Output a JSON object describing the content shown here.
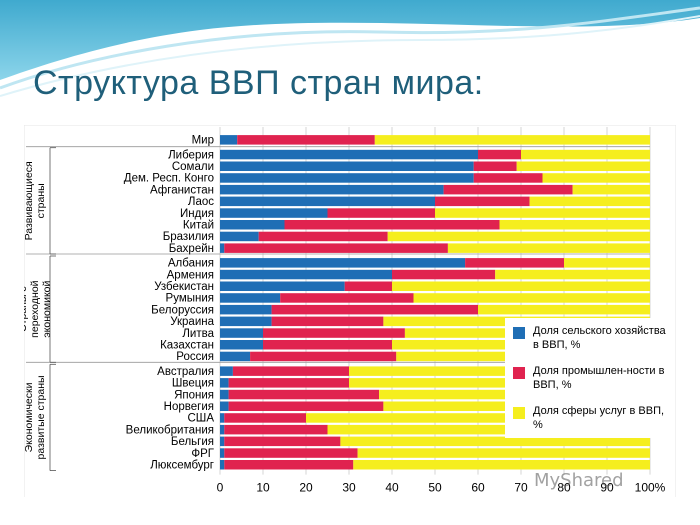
{
  "slide": {
    "title": "Структура ВВП стран мира:",
    "watermark": "MyShared"
  },
  "colors": {
    "agriculture": "#1f6eb5",
    "industry": "#e0234f",
    "services": "#f5ee1e",
    "title": "#1f5f7a"
  },
  "chart_data": {
    "type": "bar",
    "orientation": "horizontal-stacked",
    "categories": [
      "Мир",
      "Либерия",
      "Сомали",
      "Дем. Респ. Конго",
      "Афганистан",
      "Лаос",
      "Индия",
      "Китай",
      "Бразилия",
      "Бахрейн",
      "Албания",
      "Армения",
      "Узбекистан",
      "Румыния",
      "Белоруссия",
      "Украина",
      "Литва",
      "Казахстан",
      "Россия",
      "Австралия",
      "Швеция",
      "Япония",
      "Норвегия",
      "США",
      "Великобритания",
      "Бельгия",
      "ФРГ",
      "Люксембург"
    ],
    "series": [
      {
        "name": "Доля сельского хозяйства в ВВП, %",
        "values": [
          4,
          60,
          59,
          59,
          52,
          50,
          25,
          15,
          9,
          1,
          57,
          40,
          29,
          14,
          12,
          12,
          10,
          10,
          7,
          3,
          2,
          2,
          2,
          1,
          1,
          1,
          1,
          1
        ]
      },
      {
        "name": "Доля промышлен-ности в ВВП, %",
        "values": [
          32,
          10,
          10,
          16,
          30,
          22,
          25,
          50,
          30,
          52,
          23,
          24,
          11,
          31,
          48,
          26,
          33,
          30,
          34,
          27,
          28,
          35,
          36,
          19,
          24,
          27,
          31,
          30
        ]
      },
      {
        "name": "Доля сферы услуг в ВВП, %",
        "values": [
          64,
          30,
          31,
          25,
          18,
          28,
          50,
          35,
          61,
          47,
          20,
          36,
          60,
          55,
          40,
          62,
          57,
          60,
          59,
          70,
          70,
          63,
          62,
          80,
          75,
          72,
          68,
          69
        ]
      }
    ],
    "groups": [
      {
        "label": "Развивающиеся страны",
        "from": 1,
        "to": 9
      },
      {
        "label": "Страны с переходной экономикой",
        "from": 10,
        "to": 18
      },
      {
        "label": "Экономически развитые страны",
        "from": 19,
        "to": 27
      }
    ],
    "xticks": [
      "0",
      "10",
      "20",
      "30",
      "40",
      "50",
      "60",
      "70",
      "80",
      "90",
      "100%"
    ],
    "xlim": [
      0,
      100
    ],
    "grid": true,
    "legend_position": "bottom-right"
  }
}
